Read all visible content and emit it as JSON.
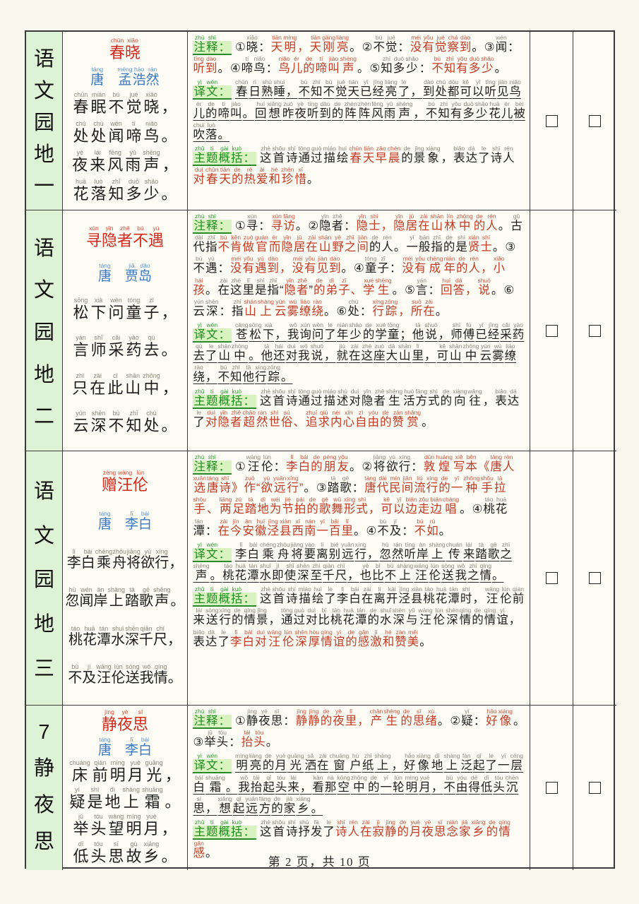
{
  "page": {
    "footer": "第 2 页，共 10 页"
  },
  "colors": {
    "page_background": "#f8f8ef",
    "cell_background": "#fcfcf5",
    "unit_cell_background": "#def2d5",
    "border": "#3a3a3a",
    "title_red": "#d3281a",
    "body_red": "#c43a22",
    "author_blue": "#3a78c4",
    "label_green": "#1e8b1e",
    "label_green_bg": "#d9f3c0",
    "pinyin_gray": "#8b8678"
  },
  "checkbox_symbol": "□",
  "rows": [
    {
      "unit": "语文园地一",
      "compact": false,
      "poem": {
        "title": {
          "t": "春晓",
          "p": "chūn xiǎo"
        },
        "author": {
          "t": "唐　孟浩然",
          "p": "táng mèng hào rán"
        },
        "lines": [
          {
            "t": "春眠不觉晓，",
            "p": "chūn mián bù jué xiǎo"
          },
          {
            "t": "处处闻啼鸟。",
            "p": "chù chù wén tí niǎo"
          },
          {
            "t": "夜来风雨声，",
            "p": "yè lái fēng yǔ shēng"
          },
          {
            "t": "花落知多少。",
            "p": "huā luò zhī duō shǎo"
          }
        ]
      },
      "sections": [
        {
          "label": "注释：",
          "label_p": "zhù shì",
          "segs": [
            [
              "k",
              "①晓：",
              "xiǎo"
            ],
            [
              "r",
              "天明，天刚亮",
              "tiān míng tiān gāng liàng"
            ],
            [
              "k",
              "。②不觉：",
              "bù jué"
            ],
            [
              "r",
              "没有觉察到",
              "méi yǒu jué chá dào"
            ],
            [
              "k",
              "。③闻：",
              "wén"
            ],
            [
              "r",
              "听到",
              "tīng dào"
            ],
            [
              "k",
              "。④啼鸟：",
              "tí niǎo"
            ],
            [
              "r",
              "鸟儿的啼叫声",
              "niǎo ér de tí jiào shēng"
            ],
            [
              "k",
              "。⑤知多少：",
              "zhī duō shǎo"
            ],
            [
              "r",
              "不知有多少",
              "bù zhī yǒu duō shǎo"
            ],
            [
              "k",
              "。",
              ""
            ]
          ]
        },
        {
          "label": "译文：",
          "label_p": "yì wén",
          "segs": [
            [
              "k u",
              "春日熟睡，不知不觉天已经亮了，到处都可以听见鸟儿的啼叫。回想昨夜听到的阵阵风雨声，不知有多少花儿被吹落。",
              "chūn rì shú shuì bù zhī bù jué tiān yǐ jīng liàng le dào chù dōu kě yǐ tīng jiàn niǎo ér de tí jiào huí xiǎng zuó yè tīng dào de zhèn zhèn fēng yǔ shēng bù zhī yǒu duō shǎo huā ér bèi chuī luò"
            ]
          ]
        },
        {
          "label": "主题概括：",
          "label_p": "zhǔ tí gài kuò",
          "segs": [
            [
              "k",
              "这首诗通过描绘",
              "zhè shǒu shī tōng guò miáo huì"
            ],
            [
              "r",
              "春天早晨",
              "chūn tiān zǎo chén"
            ],
            [
              "k",
              "的景象，表达了诗人",
              "de jǐng xiàng biǎo dá le shī rén"
            ],
            [
              "r",
              "对春天的热爱和珍惜",
              "duì chūn tiān de rè ài hé zhēn xī"
            ],
            [
              "k",
              "。",
              ""
            ]
          ]
        }
      ]
    },
    {
      "unit": "语文园地二",
      "compact": false,
      "poem": {
        "title": {
          "t": "寻隐者不遇",
          "p": "xún yǐn zhě bú yù"
        },
        "author": {
          "t": "唐　贾岛",
          "p": "táng jiǎ dǎo"
        },
        "lines": [
          {
            "t": "松下问童子，",
            "p": "sōng xià wèn tóng zǐ"
          },
          {
            "t": "言师采药去。",
            "p": "yán shī cǎi yào qù"
          },
          {
            "t": "只在此山中，",
            "p": "zhǐ zài cǐ shān zhōng"
          },
          {
            "t": "云深不知处。",
            "p": "yún shēn bù zhī chù"
          }
        ]
      },
      "sections": [
        {
          "label": "注释：",
          "label_p": "zhù shì",
          "segs": [
            [
              "k",
              "①寻：",
              "xún"
            ],
            [
              "r",
              "寻访",
              "xún fǎng"
            ],
            [
              "k",
              "。②隐者：",
              "yǐn zhě"
            ],
            [
              "r",
              "隐士，隐居在山林中的人",
              "yǐn shì yǐn jū zài shān lín zhōng de rén"
            ],
            [
              "k",
              "。古代指",
              "gǔ dài zhǐ"
            ],
            [
              "r",
              "不肯做官而隐居在山野之间",
              "bù kěn zuò guān ér yǐn jū zài shān yě zhī jiān"
            ],
            [
              "k",
              "的人。一般指的是",
              "de rén yī bān zhǐ de shì"
            ],
            [
              "r",
              "贤士",
              "xián shì"
            ],
            [
              "k",
              "。③不遇：",
              "bú yù"
            ],
            [
              "r",
              "没有遇到，没有见到",
              "méi yǒu yù dào méi yǒu jiàn dào"
            ],
            [
              "k",
              "。④童子：",
              "tóng zǐ"
            ],
            [
              "r",
              "没有成年的人，小孩",
              "méi yǒu chéng nián de rén xiǎo hái"
            ],
            [
              "k",
              "。在这里是指“",
              "zài zhè lǐ shì zhǐ"
            ],
            [
              "r",
              "隐者",
              "yǐn zhě"
            ],
            [
              "k",
              "”",
              ""
            ],
            [
              "r",
              "的弟子、学生",
              "de dì zǐ xué shēng"
            ],
            [
              "k",
              "。⑤言：",
              "yán"
            ],
            [
              "r",
              "回答，说",
              "huí dá shuō"
            ],
            [
              "k",
              "。⑥云深：指",
              "yún shēn zhǐ"
            ],
            [
              "r",
              "山上云雾缭绕",
              "shān shàng yún wù liáo rào"
            ],
            [
              "k",
              "。⑥处：",
              "chù"
            ],
            [
              "r",
              "行踪，所在",
              "xíng zōng suǒ zài"
            ],
            [
              "k",
              "。",
              ""
            ]
          ]
        },
        {
          "label": "译文：",
          "label_p": "yì wén",
          "segs": [
            [
              "k u",
              "苍松下，我询问了年少的学童；他说，师傅已经采药去了山中。他还对我说，就在这座大山里，可山中云雾缭绕，不知他行踪。",
              "cāng sōng xià wǒ xún wèn le nián shào de xué tóng tā shuō shī fù yǐ jīng cǎi yào qù le shān zhōng tā hái duì wǒ shuō jiù zài zhè zuò dà shān lǐ kě shān zhōng yún wù liáo rào bù zhī tā xíng zōng"
            ]
          ]
        },
        {
          "label": "主题概括：",
          "label_p": "zhǔ tí gài kuò",
          "segs": [
            [
              "k",
              "这首诗通过描述对隐者生活方式的向往，表达了",
              "zhè shǒu shī tōng guò miáo shù duì yǐn zhě shēng huó fāng shì de xiàng wǎng biǎo dá le"
            ],
            [
              "r",
              "对隐者超然世俗、追求内心自由的赞赏",
              "duì yǐn zhě chāo rán shì sú zhuī qiú nèi xīn zì yóu de zàn shǎng"
            ],
            [
              "k",
              "。",
              ""
            ]
          ]
        }
      ]
    },
    {
      "unit": "语文园地三",
      "compact": true,
      "poem": {
        "title": {
          "t": "赠汪伦",
          "p": "zèng wāng lún"
        },
        "author": {
          "t": "唐　李白",
          "p": "táng lǐ bái"
        },
        "lines": [
          {
            "t": "李白乘舟将欲行，",
            "p": "lǐ bái chéng zhōu jiāng yù xíng"
          },
          {
            "t": "忽闻岸上踏歌声。",
            "p": "hū wén àn shàng tà gē shēng"
          },
          {
            "t": "桃花潭水深千尺，",
            "p": "táo huā tán shuǐ shēn qiān chǐ"
          },
          {
            "t": "不及汪伦送我情。",
            "p": "bù jí wāng lún sòng wǒ qíng"
          }
        ]
      },
      "sections": [
        {
          "label": "注释：",
          "label_p": "zhù shì",
          "segs": [
            [
              "k",
              "①汪伦：",
              "wāng lún"
            ],
            [
              "r",
              "李白的朋友",
              "lǐ bái de péng yǒu"
            ],
            [
              "k",
              "。②将欲行：",
              "jiāng yù xíng"
            ],
            [
              "r",
              "敦煌写本《唐人选唐诗》作“欲远行”",
              "dūn huáng xiě běn táng rén xuǎn táng shī zuò yù yuǎn xíng"
            ],
            [
              "k",
              "。③踏歌：",
              "tà gē"
            ],
            [
              "r",
              "唐代民间流行的一种手拉手、两足踏地为节拍的歌舞形式，可以边走边唱",
              "táng dài mín jiān liú xíng de yī zhǒng shǒu lā shǒu liǎng zú tà dì wéi jié pāi de gē wǔ xíng shì kě yǐ biān zǒu biān chàng"
            ],
            [
              "k",
              "。④桃花潭：",
              "táo huā tán"
            ],
            [
              "r",
              "在今安徽泾县西南一百里",
              "zài jīn ān huī jīng xiàn xī nán yī bǎi lǐ"
            ],
            [
              "k",
              "。④不及：",
              "bù jí"
            ],
            [
              "r",
              "不如",
              "bù rú"
            ],
            [
              "k",
              "。",
              ""
            ]
          ]
        },
        {
          "label": "译文：",
          "label_p": "yì wén",
          "segs": [
            [
              "k u",
              "李白乘舟将要离别远行，忽然听岸上传来踏歌之声。桃花潭水即使深至千尺，也比不上汪伦送我之情。",
              "lǐ bái chéng zhōu jiāng yào lí bié yuǎn xíng hū rán tīng àn shàng chuán lái tà gē zhī shēng táo huā tán shuǐ jí shǐ shēn zhì qiān chǐ yě bǐ bù shàng wāng lún sòng wǒ zhī qíng"
            ]
          ]
        },
        {
          "label": "主题概括：",
          "label_p": "zhǔ tí gài kuò",
          "segs": [
            [
              "k",
              "这首诗描绘了李白在离开泾县桃花潭时，汪伦前来送行的情景，通过对比桃花潭的水深与汪伦深情的情谊，表达了",
              "zhè shǒu shī miáo huì le lǐ bái zài lí kāi jīng xiàn táo huā tán shí wāng lún qián lái sòng xíng de qíng jǐng tōng guò duì bǐ táo huā tán de shuǐ shēn yǔ wāng lún shēn qíng de qíng yì biǎo dá le"
            ],
            [
              "r",
              "李白对汪伦深厚情谊的感激和赞美",
              "lǐ bái duì wāng lún shēn hòu qíng yì de gǎn jī hé zàn měi"
            ],
            [
              "k",
              "。",
              ""
            ]
          ]
        }
      ]
    },
    {
      "unit": "7静夜思",
      "compact": false,
      "poem": {
        "title": {
          "t": "静夜思",
          "p": "jìng yè sī"
        },
        "author": {
          "t": "唐　李白",
          "p": "táng lǐ bái"
        },
        "lines": [
          {
            "t": "床前明月光，",
            "p": "chuáng qián míng yuè guāng"
          },
          {
            "t": "疑是地上霜。",
            "p": "yí shì dì shàng shuāng"
          },
          {
            "t": "举头望明月，",
            "p": "jǔ tóu wàng míng yuè"
          },
          {
            "t": "低头思故乡。",
            "p": "dī tóu sī gù xiāng"
          }
        ]
      },
      "sections": [
        {
          "label": "注释：",
          "label_p": "zhù shì",
          "segs": [
            [
              "k",
              "①静夜思：",
              "jìng yè sī"
            ],
            [
              "r",
              "静静的夜里，产生的思绪",
              "jìng jìng de yè lǐ chǎn shēng de sī xù"
            ],
            [
              "k",
              "。②疑：",
              "yí"
            ],
            [
              "r",
              "好像",
              "hǎo xiàng"
            ],
            [
              "k",
              "。③举头：",
              "jǔ tóu"
            ],
            [
              "r",
              "抬头",
              "tái tóu"
            ],
            [
              "k",
              "。",
              ""
            ]
          ]
        },
        {
          "label": "译文：",
          "label_p": "yì wén",
          "segs": [
            [
              "k u",
              "明亮的月光洒在窗户纸上，好像地上泛起了一层白霜。我抬起头来，看那空中的一轮明月，不由得低头沉思，想起远方的家乡。",
              "míng liàng de yuè guāng sǎ zài chuāng hù zhǐ shàng hǎo xiàng dì shàng fàn qǐ le yī céng bái shuāng wǒ tái qǐ tóu lái kàn nà kōng zhōng de yī lún míng yuè bù yóu dé dī tóu chén sī xiǎng qǐ yuǎn fāng de jiā xiāng"
            ]
          ]
        },
        {
          "label": "主题概括：",
          "label_p": "zhǔ tí gài kuò",
          "segs": [
            [
              "k",
              "这首诗抒发了",
              "zhè shǒu shī shū fā le"
            ],
            [
              "r",
              "诗人在寂静的月夜思念家乡的情感",
              "shī rén zài jì jìng de yuè yè sī niàn jiā xiāng de qíng gǎn"
            ],
            [
              "k",
              "。",
              ""
            ]
          ]
        }
      ]
    }
  ]
}
